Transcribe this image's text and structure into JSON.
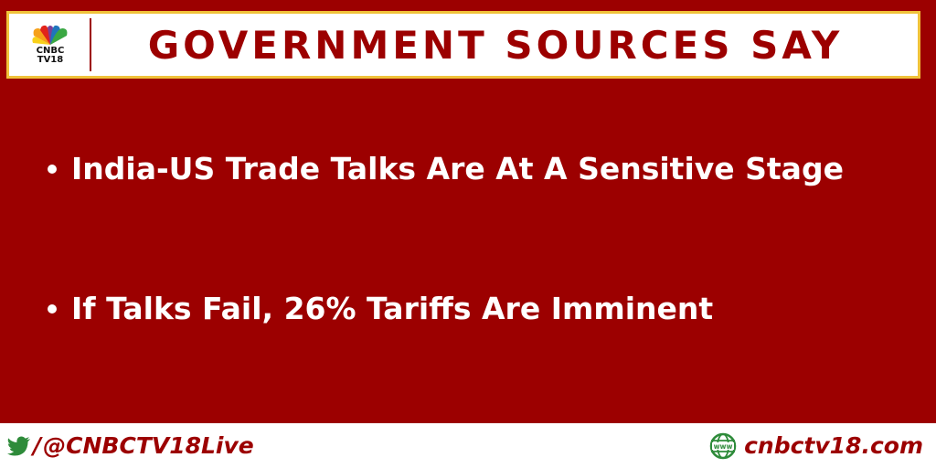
{
  "logo": {
    "line1": "CNBC",
    "line2": "TV18"
  },
  "header": {
    "title": "GOVERNMENT SOURCES SAY"
  },
  "bullets": [
    {
      "text": "India-US Trade Talks Are At A Sensitive Stage"
    },
    {
      "text": "If Talks Fail, 26% Tariffs Are Imminent"
    }
  ],
  "footer": {
    "slash": "/",
    "handle": "@CNBCTV18Live",
    "site": "cnbctv18.com",
    "www_label": "www"
  },
  "colors": {
    "background": "#9c0000",
    "header_border": "#f0c23a",
    "accent_green": "#2e8b3a",
    "text_white": "#ffffff"
  },
  "icons": [
    "cnbc-peacock-logo",
    "twitter-bird-icon",
    "globe-www-icon"
  ]
}
